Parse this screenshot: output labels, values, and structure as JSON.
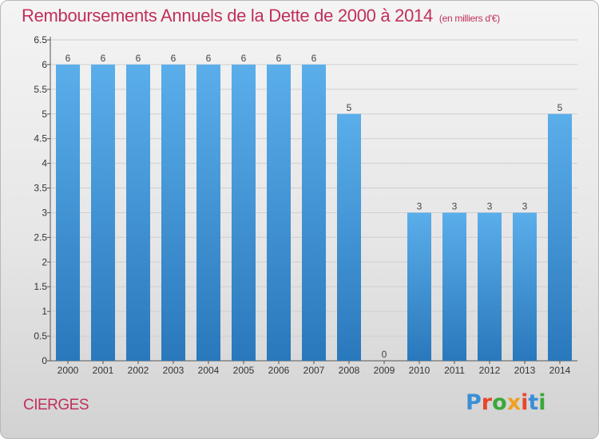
{
  "header": {
    "title": "Remboursements Annuels de la Dette de 2000 à 2014",
    "unit": "(en milliers d'€)"
  },
  "footer": {
    "commune": "CIERGES",
    "logo": "Proxiti",
    "logo_colors": [
      "#3a8fd6",
      "#e8462e",
      "#3aa83a",
      "#f0a020",
      "#e8462e",
      "#3a8fd6",
      "#3aa83a"
    ]
  },
  "chart_data": {
    "type": "bar",
    "title": "Remboursements Annuels de la Dette de 2000 à 2014",
    "subtitle": "(en milliers d'€)",
    "xlabel": "",
    "ylabel": "",
    "categories": [
      "2000",
      "2001",
      "2002",
      "2003",
      "2004",
      "2005",
      "2006",
      "2007",
      "2008",
      "2009",
      "2010",
      "2011",
      "2012",
      "2013",
      "2014"
    ],
    "values": [
      6,
      6,
      6,
      6,
      6,
      6,
      6,
      6,
      5,
      0,
      3,
      3,
      3,
      3,
      5
    ],
    "data_labels": [
      "6",
      "6",
      "6",
      "6",
      "6",
      "6",
      "6",
      "6",
      "5",
      "0",
      "3",
      "3",
      "3",
      "3",
      "5"
    ],
    "ylim": [
      0,
      6.5
    ],
    "yticks": [
      "0",
      "0.5",
      "1",
      "1.5",
      "2",
      "2.5",
      "3",
      "3.5",
      "4",
      "4.5",
      "5",
      "5.5",
      "6",
      "6.5"
    ],
    "bar_color_top": "#5aaeea",
    "bar_color_bottom": "#2a78bc",
    "grid": true
  }
}
